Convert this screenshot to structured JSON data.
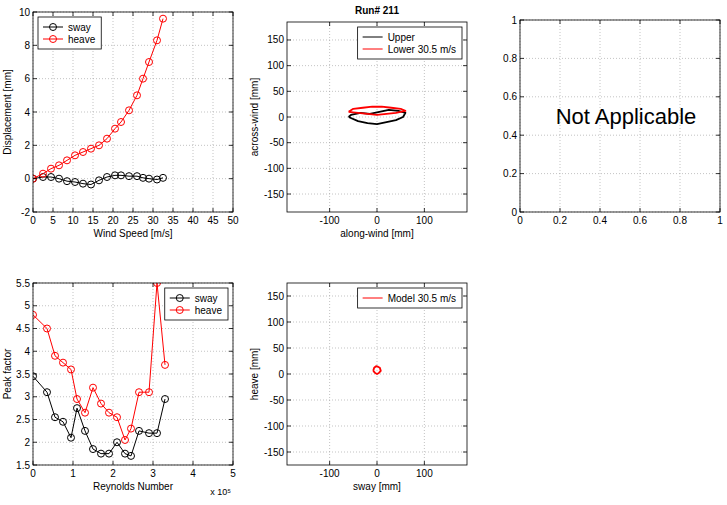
{
  "chart_data": [
    {
      "type": "line",
      "xlabel": "Wind Speed [m/s]",
      "ylabel": "Displacement [mm]",
      "x": [
        0,
        2.5,
        4.5,
        6.5,
        8.5,
        10.5,
        12.5,
        14.5,
        16.5,
        18.5,
        20.5,
        22,
        24,
        26,
        27.5,
        29,
        31,
        32.5
      ],
      "series": [
        {
          "name": "sway",
          "color": "#000000",
          "marker": "circle",
          "values": [
            0,
            0.1,
            0.1,
            0,
            -0.15,
            -0.2,
            -0.3,
            -0.35,
            -0.1,
            0.1,
            0.2,
            0.2,
            0.15,
            0.15,
            0.05,
            0,
            -0.05,
            0.05
          ]
        },
        {
          "name": "heave",
          "color": "#ff0000",
          "marker": "circle",
          "values": [
            0,
            0.3,
            0.6,
            0.8,
            1.1,
            1.4,
            1.6,
            1.8,
            2.0,
            2.4,
            3.0,
            3.4,
            4.1,
            5.0,
            6.0,
            7.0,
            8.3,
            9.6
          ]
        }
      ],
      "xlim": [
        0,
        50
      ],
      "xticks": [
        0,
        5,
        10,
        15,
        20,
        25,
        30,
        35,
        40,
        45,
        50
      ],
      "ylim": [
        -2,
        10
      ],
      "yticks": [
        -2,
        0,
        2,
        4,
        6,
        8,
        10
      ],
      "grid": true,
      "legend": "upper left"
    },
    {
      "type": "line",
      "title": "Run# 211",
      "xlabel": "along-wind [mm]",
      "ylabel": "across-wind [mm]",
      "series": [
        {
          "name": "Upper",
          "color": "#000000",
          "x": [
            -60,
            -40,
            -20,
            0,
            20,
            40,
            55,
            60,
            45,
            25,
            5,
            -15,
            -35,
            -55,
            -60
          ],
          "values": [
            0,
            -8,
            -12,
            -14,
            -10,
            -6,
            0,
            8,
            12,
            14,
            10,
            6,
            8,
            4,
            0
          ]
        },
        {
          "name": "Lower 30.5 m/s",
          "color": "#ff0000",
          "x": [
            -60,
            -40,
            -20,
            0,
            20,
            40,
            60,
            50,
            30,
            10,
            -10,
            -30,
            -50,
            -60
          ],
          "values": [
            10,
            8,
            6,
            4,
            6,
            8,
            12,
            16,
            18,
            20,
            20,
            18,
            16,
            10
          ]
        }
      ],
      "xlim": [
        -190,
        190
      ],
      "xticks": [
        -100,
        0,
        100
      ],
      "ylim": [
        -185,
        185
      ],
      "yticks": [
        -150,
        -100,
        -50,
        0,
        50,
        100,
        150
      ],
      "grid": true,
      "legend": "upper right"
    },
    {
      "type": "blank",
      "annotation": "Not Applicable",
      "xlim": [
        0,
        1
      ],
      "xticks": [
        0,
        0.2,
        0.4,
        0.6,
        0.8,
        1
      ],
      "ylim": [
        0,
        1
      ],
      "yticks": [
        0,
        0.2,
        0.4,
        0.6,
        0.8,
        1
      ],
      "grid": true
    },
    {
      "type": "line",
      "xlabel": "Reynolds Number",
      "ylabel": "Peak factor",
      "annotation": "x 10⁵",
      "x": [
        0,
        0.35,
        0.55,
        0.75,
        0.95,
        1.1,
        1.3,
        1.5,
        1.7,
        1.9,
        2.1,
        2.3,
        2.45,
        2.65,
        2.9,
        3.1,
        3.3
      ],
      "series": [
        {
          "name": "sway",
          "color": "#000000",
          "marker": "circle",
          "values": [
            3.45,
            3.1,
            2.55,
            2.45,
            2.1,
            2.75,
            2.25,
            1.85,
            1.75,
            1.75,
            2.0,
            1.75,
            1.7,
            2.25,
            2.2,
            2.2,
            2.95
          ]
        },
        {
          "name": "heave",
          "color": "#ff0000",
          "marker": "circle",
          "values": [
            4.8,
            4.5,
            3.9,
            3.75,
            3.6,
            2.95,
            2.65,
            3.2,
            2.85,
            2.65,
            2.55,
            2.05,
            2.3,
            3.1,
            3.1,
            5.5,
            3.7
          ]
        }
      ],
      "xlim": [
        0,
        5
      ],
      "xticks": [
        0,
        1,
        2,
        3,
        4,
        5
      ],
      "ylim": [
        1.5,
        5.5
      ],
      "yticks": [
        1.5,
        2,
        2.5,
        3,
        3.5,
        4,
        4.5,
        5,
        5.5
      ],
      "grid": true,
      "legend": "upper right"
    },
    {
      "type": "line",
      "xlabel": "sway [mm]",
      "ylabel": "heave [mm]",
      "series": [
        {
          "name": "Model 30.5 m/s",
          "color": "#ff0000",
          "x": [
            -8,
            -4,
            0,
            4,
            8,
            6,
            2,
            -2,
            -6,
            -8
          ],
          "values": [
            6,
            2,
            0,
            2,
            6,
            12,
            14,
            15,
            12,
            6
          ]
        }
      ],
      "xlim": [
        -190,
        190
      ],
      "xticks": [
        -100,
        0,
        100
      ],
      "ylim": [
        -175,
        175
      ],
      "yticks": [
        -150,
        -100,
        -50,
        0,
        50,
        100,
        150
      ],
      "grid": true,
      "legend": "upper right"
    }
  ]
}
